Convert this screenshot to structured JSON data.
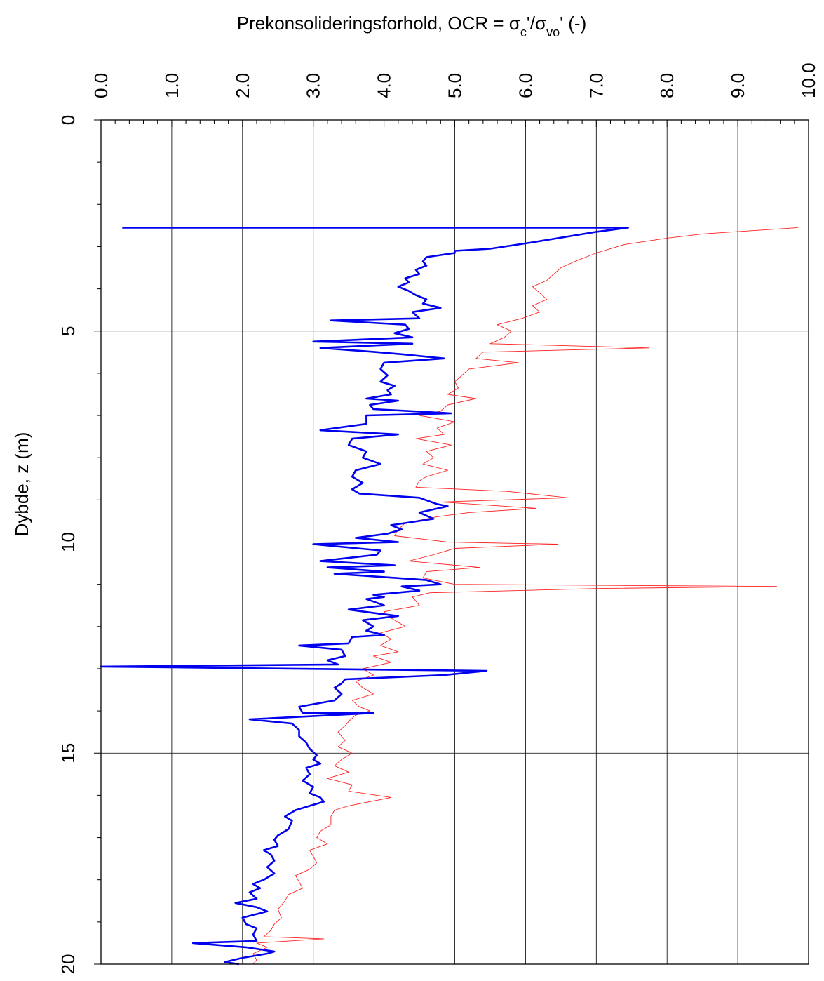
{
  "chart_data": {
    "type": "line",
    "title": "Prekonsolideringsforhold, OCR = σc'/σvo' (-)",
    "title_parts": {
      "main": "Prekonsolideringsforhold, OCR = σ",
      "sub1": "c",
      "mid": "'/σ",
      "sub2": "vo",
      "end": "' (-)"
    },
    "xlabel": "Prekonsolideringsforhold, OCR = σc'/σvo' (-)",
    "ylabel": "Dybde, z (m)",
    "x_axis_position": "top",
    "x_tick_labels_rotated": true,
    "xlim": [
      0,
      10
    ],
    "ylim": [
      0,
      20
    ],
    "y_inverted": true,
    "x_ticks": [
      "0.0",
      "1.0",
      "2.0",
      "3.0",
      "4.0",
      "5.0",
      "6.0",
      "7.0",
      "8.0",
      "9.0",
      "10.0"
    ],
    "y_ticks": [
      "0",
      "5",
      "10",
      "15",
      "20"
    ],
    "grid": true,
    "legend": "none",
    "series": [
      {
        "color": "#0000ee",
        "width": "thick",
        "points": [
          [
            0.3,
            2.55
          ],
          [
            7.45,
            2.55
          ],
          [
            7.0,
            2.65
          ],
          [
            6.1,
            2.9
          ],
          [
            5.5,
            3.05
          ],
          [
            5.0,
            3.1
          ],
          [
            5.0,
            3.15
          ],
          [
            4.8,
            3.2
          ],
          [
            4.6,
            3.25
          ],
          [
            4.55,
            3.35
          ],
          [
            4.6,
            3.45
          ],
          [
            4.45,
            3.55
          ],
          [
            4.5,
            3.65
          ],
          [
            4.3,
            3.75
          ],
          [
            4.35,
            3.85
          ],
          [
            4.2,
            3.95
          ],
          [
            4.35,
            4.05
          ],
          [
            4.45,
            4.15
          ],
          [
            4.6,
            4.25
          ],
          [
            4.55,
            4.35
          ],
          [
            4.8,
            4.45
          ],
          [
            4.4,
            4.55
          ],
          [
            4.5,
            4.7
          ],
          [
            3.25,
            4.75
          ],
          [
            4.3,
            4.85
          ],
          [
            4.35,
            4.95
          ],
          [
            4.15,
            5.05
          ],
          [
            4.4,
            5.15
          ],
          [
            3.0,
            5.25
          ],
          [
            4.4,
            5.3
          ],
          [
            3.1,
            5.4
          ],
          [
            3.9,
            5.5
          ],
          [
            4.25,
            5.55
          ],
          [
            4.85,
            5.65
          ],
          [
            4.0,
            5.75
          ],
          [
            3.95,
            5.9
          ],
          [
            4.05,
            6.05
          ],
          [
            3.95,
            6.2
          ],
          [
            4.15,
            6.3
          ],
          [
            4.05,
            6.4
          ],
          [
            4.1,
            6.5
          ],
          [
            3.75,
            6.6
          ],
          [
            4.2,
            6.65
          ],
          [
            3.8,
            6.75
          ],
          [
            3.85,
            6.85
          ],
          [
            4.95,
            6.95
          ],
          [
            3.75,
            7.0
          ],
          [
            3.75,
            7.2
          ],
          [
            3.1,
            7.35
          ],
          [
            4.2,
            7.45
          ],
          [
            3.55,
            7.55
          ],
          [
            3.5,
            7.7
          ],
          [
            3.75,
            7.85
          ],
          [
            3.7,
            8.0
          ],
          [
            3.95,
            8.15
          ],
          [
            3.6,
            8.3
          ],
          [
            3.55,
            8.45
          ],
          [
            3.7,
            8.6
          ],
          [
            3.55,
            8.75
          ],
          [
            3.65,
            8.85
          ],
          [
            4.5,
            8.95
          ],
          [
            4.75,
            9.1
          ],
          [
            4.9,
            9.15
          ],
          [
            4.5,
            9.3
          ],
          [
            4.7,
            9.45
          ],
          [
            4.1,
            9.6
          ],
          [
            4.25,
            9.7
          ],
          [
            4.05,
            9.8
          ],
          [
            3.6,
            9.9
          ],
          [
            4.2,
            10.0
          ],
          [
            3.0,
            10.05
          ],
          [
            3.95,
            10.2
          ],
          [
            3.9,
            10.3
          ],
          [
            3.1,
            10.45
          ],
          [
            4.15,
            10.55
          ],
          [
            3.2,
            10.6
          ],
          [
            4.0,
            10.7
          ],
          [
            3.3,
            10.75
          ],
          [
            4.6,
            10.9
          ],
          [
            4.8,
            11.0
          ],
          [
            4.25,
            11.05
          ],
          [
            4.5,
            11.15
          ],
          [
            3.85,
            11.25
          ],
          [
            4.0,
            11.3
          ],
          [
            3.75,
            11.35
          ],
          [
            4.0,
            11.5
          ],
          [
            3.5,
            11.6
          ],
          [
            3.95,
            11.7
          ],
          [
            4.2,
            11.75
          ],
          [
            3.7,
            11.85
          ],
          [
            3.85,
            12.0
          ],
          [
            3.75,
            12.1
          ],
          [
            4.0,
            12.2
          ],
          [
            3.55,
            12.25
          ],
          [
            3.5,
            12.4
          ],
          [
            2.8,
            12.45
          ],
          [
            3.4,
            12.55
          ],
          [
            3.45,
            12.7
          ],
          [
            3.2,
            12.8
          ],
          [
            3.35,
            12.9
          ],
          [
            0.0,
            12.95
          ],
          [
            5.45,
            13.05
          ],
          [
            4.85,
            13.15
          ],
          [
            3.45,
            13.25
          ],
          [
            3.4,
            13.35
          ],
          [
            3.3,
            13.45
          ],
          [
            3.4,
            13.6
          ],
          [
            3.3,
            13.75
          ],
          [
            2.8,
            13.9
          ],
          [
            2.85,
            14.05
          ],
          [
            3.85,
            14.05
          ],
          [
            2.1,
            14.2
          ],
          [
            2.7,
            14.3
          ],
          [
            2.8,
            14.45
          ],
          [
            2.8,
            14.6
          ],
          [
            2.9,
            14.75
          ],
          [
            2.95,
            14.9
          ],
          [
            3.05,
            15.05
          ],
          [
            3.0,
            15.15
          ],
          [
            3.1,
            15.25
          ],
          [
            2.9,
            15.35
          ],
          [
            2.95,
            15.5
          ],
          [
            2.85,
            15.65
          ],
          [
            3.0,
            15.8
          ],
          [
            2.95,
            15.95
          ],
          [
            3.1,
            16.05
          ],
          [
            3.15,
            16.15
          ],
          [
            2.95,
            16.25
          ],
          [
            2.75,
            16.35
          ],
          [
            2.6,
            16.5
          ],
          [
            2.7,
            16.6
          ],
          [
            2.65,
            16.8
          ],
          [
            2.5,
            16.95
          ],
          [
            2.45,
            17.05
          ],
          [
            2.5,
            17.2
          ],
          [
            2.3,
            17.3
          ],
          [
            2.4,
            17.4
          ],
          [
            2.45,
            17.55
          ],
          [
            2.35,
            17.7
          ],
          [
            2.45,
            17.85
          ],
          [
            2.3,
            18.0
          ],
          [
            2.15,
            18.1
          ],
          [
            2.25,
            18.2
          ],
          [
            2.1,
            18.3
          ],
          [
            2.2,
            18.45
          ],
          [
            1.9,
            18.55
          ],
          [
            2.2,
            18.65
          ],
          [
            2.35,
            18.75
          ],
          [
            2.0,
            18.9
          ],
          [
            2.05,
            19.05
          ],
          [
            2.2,
            19.15
          ],
          [
            2.15,
            19.3
          ],
          [
            2.2,
            19.45
          ],
          [
            1.3,
            19.5
          ],
          [
            2.05,
            19.6
          ],
          [
            2.45,
            19.7
          ],
          [
            2.35,
            19.75
          ],
          [
            2.0,
            19.85
          ],
          [
            1.75,
            19.95
          ],
          [
            1.95,
            20.0
          ]
        ]
      },
      {
        "color": "#ff2020",
        "width": "thin",
        "points": [
          [
            9.85,
            2.55
          ],
          [
            8.5,
            2.7
          ],
          [
            8.0,
            2.8
          ],
          [
            7.4,
            2.95
          ],
          [
            7.0,
            3.15
          ],
          [
            6.7,
            3.35
          ],
          [
            6.5,
            3.5
          ],
          [
            6.4,
            3.65
          ],
          [
            6.3,
            3.8
          ],
          [
            6.1,
            3.95
          ],
          [
            6.2,
            4.1
          ],
          [
            6.3,
            4.25
          ],
          [
            6.1,
            4.4
          ],
          [
            6.2,
            4.55
          ],
          [
            5.95,
            4.7
          ],
          [
            5.6,
            4.85
          ],
          [
            5.8,
            5.0
          ],
          [
            5.7,
            5.15
          ],
          [
            5.5,
            5.3
          ],
          [
            7.75,
            5.4
          ],
          [
            5.4,
            5.5
          ],
          [
            5.3,
            5.65
          ],
          [
            5.9,
            5.75
          ],
          [
            5.2,
            5.9
          ],
          [
            5.1,
            6.05
          ],
          [
            5.0,
            6.2
          ],
          [
            5.05,
            6.35
          ],
          [
            4.9,
            6.5
          ],
          [
            5.3,
            6.6
          ],
          [
            4.9,
            6.75
          ],
          [
            4.8,
            6.9
          ],
          [
            4.5,
            7.0
          ],
          [
            5.0,
            7.15
          ],
          [
            4.75,
            7.3
          ],
          [
            4.85,
            7.45
          ],
          [
            4.45,
            7.55
          ],
          [
            4.95,
            7.7
          ],
          [
            4.6,
            7.85
          ],
          [
            4.7,
            8.0
          ],
          [
            4.55,
            8.15
          ],
          [
            4.9,
            8.3
          ],
          [
            4.6,
            8.45
          ],
          [
            4.5,
            8.55
          ],
          [
            4.45,
            8.7
          ],
          [
            5.75,
            8.8
          ],
          [
            6.6,
            8.95
          ],
          [
            4.8,
            9.05
          ],
          [
            6.15,
            9.2
          ],
          [
            5.2,
            9.3
          ],
          [
            4.75,
            9.4
          ],
          [
            4.3,
            9.55
          ],
          [
            4.2,
            9.7
          ],
          [
            4.15,
            9.85
          ],
          [
            4.9,
            10.0
          ],
          [
            6.45,
            10.05
          ],
          [
            5.0,
            10.15
          ],
          [
            4.7,
            10.3
          ],
          [
            4.35,
            10.45
          ],
          [
            5.35,
            10.6
          ],
          [
            4.6,
            10.7
          ],
          [
            4.55,
            10.85
          ],
          [
            5.0,
            11.0
          ],
          [
            9.55,
            11.05
          ],
          [
            7.0,
            11.1
          ],
          [
            4.65,
            11.2
          ],
          [
            4.4,
            11.3
          ],
          [
            4.5,
            11.5
          ],
          [
            4.0,
            11.65
          ],
          [
            4.1,
            11.8
          ],
          [
            4.3,
            12.0
          ],
          [
            3.95,
            12.15
          ],
          [
            4.1,
            12.3
          ],
          [
            3.95,
            12.45
          ],
          [
            4.2,
            12.6
          ],
          [
            3.85,
            12.7
          ],
          [
            4.1,
            12.85
          ],
          [
            3.7,
            13.0
          ],
          [
            3.85,
            13.15
          ],
          [
            3.6,
            13.3
          ],
          [
            3.7,
            13.45
          ],
          [
            3.85,
            13.6
          ],
          [
            3.55,
            13.75
          ],
          [
            3.65,
            13.9
          ],
          [
            3.8,
            14.0
          ],
          [
            3.6,
            14.1
          ],
          [
            3.5,
            14.25
          ],
          [
            3.45,
            14.35
          ],
          [
            3.35,
            14.5
          ],
          [
            3.45,
            14.7
          ],
          [
            3.35,
            14.85
          ],
          [
            3.55,
            15.0
          ],
          [
            3.4,
            15.15
          ],
          [
            3.3,
            15.3
          ],
          [
            3.5,
            15.45
          ],
          [
            3.2,
            15.6
          ],
          [
            3.55,
            15.75
          ],
          [
            3.5,
            15.9
          ],
          [
            4.1,
            16.05
          ],
          [
            3.8,
            16.15
          ],
          [
            3.5,
            16.25
          ],
          [
            3.3,
            16.35
          ],
          [
            3.25,
            16.5
          ],
          [
            3.25,
            16.7
          ],
          [
            3.1,
            16.85
          ],
          [
            3.05,
            17.0
          ],
          [
            3.2,
            17.15
          ],
          [
            2.95,
            17.3
          ],
          [
            3.0,
            17.45
          ],
          [
            3.05,
            17.6
          ],
          [
            2.95,
            17.75
          ],
          [
            2.75,
            17.9
          ],
          [
            2.8,
            18.05
          ],
          [
            2.85,
            18.2
          ],
          [
            2.65,
            18.35
          ],
          [
            2.6,
            18.5
          ],
          [
            2.5,
            18.7
          ],
          [
            2.55,
            18.9
          ],
          [
            2.45,
            19.05
          ],
          [
            2.4,
            19.2
          ],
          [
            2.3,
            19.35
          ],
          [
            3.15,
            19.4
          ],
          [
            2.2,
            19.5
          ],
          [
            2.35,
            19.6
          ],
          [
            2.15,
            19.75
          ],
          [
            2.2,
            19.9
          ],
          [
            2.15,
            20.0
          ]
        ]
      }
    ]
  }
}
